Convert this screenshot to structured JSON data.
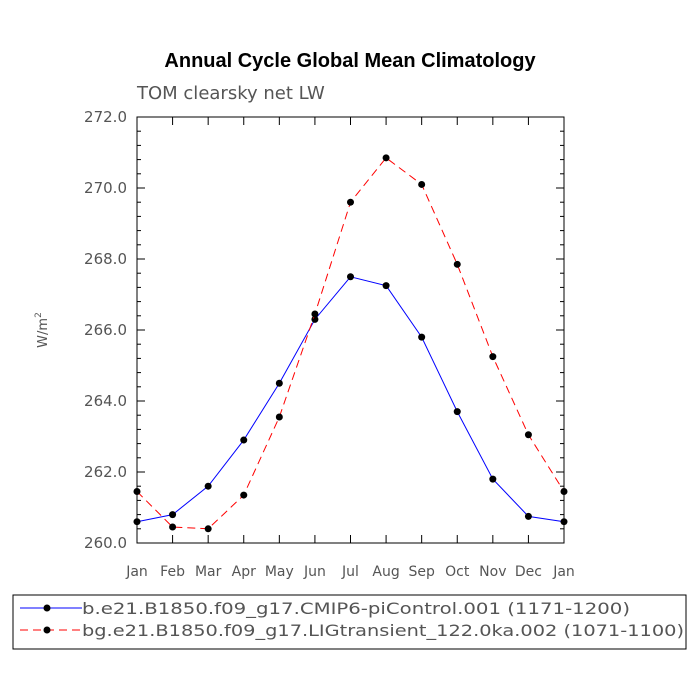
{
  "chart_data": {
    "type": "line",
    "title": "Annual Cycle Global Mean Climatology",
    "subtitle": "TOM clearsky net LW",
    "ylabel": "W/m",
    "ylabel_sup": "2",
    "ylim": [
      260.0,
      272.0
    ],
    "yticks": [
      260.0,
      262.0,
      264.0,
      266.0,
      268.0,
      270.0,
      272.0
    ],
    "ytick_labels": [
      "260.0",
      "262.0",
      "264.0",
      "266.0",
      "268.0",
      "270.0",
      "272.0"
    ],
    "categories": [
      "Jan",
      "Feb",
      "Mar",
      "Apr",
      "May",
      "Jun",
      "Jul",
      "Aug",
      "Sep",
      "Oct",
      "Nov",
      "Dec",
      "Jan"
    ],
    "grid": false,
    "legend_position": "bottom",
    "series": [
      {
        "name": "b.e21.B1850.f09_g17.CMIP6-piControl.001 (1171-1200)",
        "color": "#0000ff",
        "dash": "solid",
        "values": [
          260.6,
          260.8,
          261.6,
          262.9,
          264.5,
          266.3,
          267.5,
          267.25,
          265.8,
          263.7,
          261.8,
          260.75,
          260.6
        ]
      },
      {
        "name": "bg.e21.B1850.f09_g17.LIGtransient_122.0ka.002 (1071-1100)",
        "color": "#ff0000",
        "dash": "dashed",
        "values": [
          261.45,
          260.45,
          260.4,
          261.35,
          263.55,
          266.45,
          269.6,
          270.85,
          270.1,
          267.85,
          265.25,
          263.05,
          261.45
        ]
      }
    ]
  }
}
